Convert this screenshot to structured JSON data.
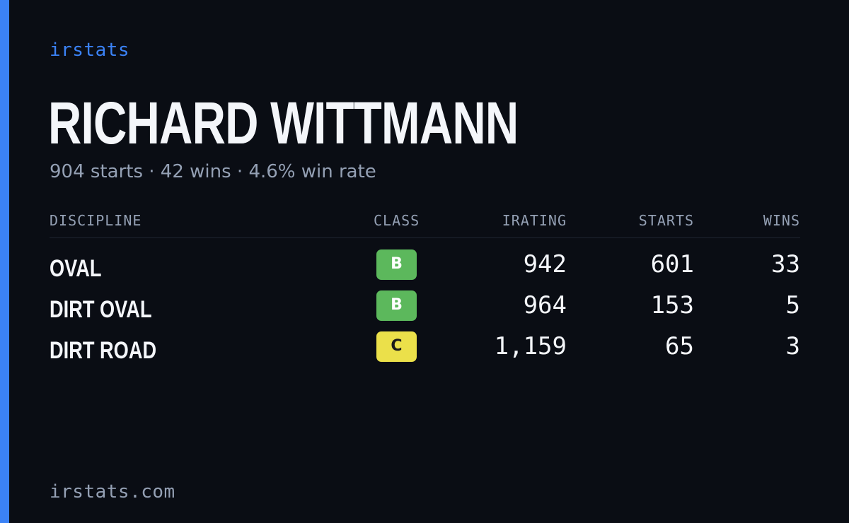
{
  "brand": "irstats",
  "player": {
    "name": "RICHARD WITTMANN",
    "summary": "904 starts · 42 wins · 4.6% win rate"
  },
  "table": {
    "headers": {
      "discipline": "DISCIPLINE",
      "class": "CLASS",
      "irating": "IRATING",
      "starts": "STARTS",
      "wins": "WINS"
    },
    "rows": [
      {
        "discipline": "OVAL",
        "class": "B",
        "class_color": "#5cb85c",
        "irating": "942",
        "starts": "601",
        "wins": "33"
      },
      {
        "discipline": "DIRT OVAL",
        "class": "B",
        "class_color": "#5cb85c",
        "irating": "964",
        "starts": "153",
        "wins": "5"
      },
      {
        "discipline": "DIRT ROAD",
        "class": "C",
        "class_color": "#ebe04a",
        "irating": "1,159",
        "starts": "65",
        "wins": "3"
      }
    ]
  },
  "footer": "irstats.com",
  "colors": {
    "accent": "#3b82f6",
    "background": "#0a0d14"
  }
}
